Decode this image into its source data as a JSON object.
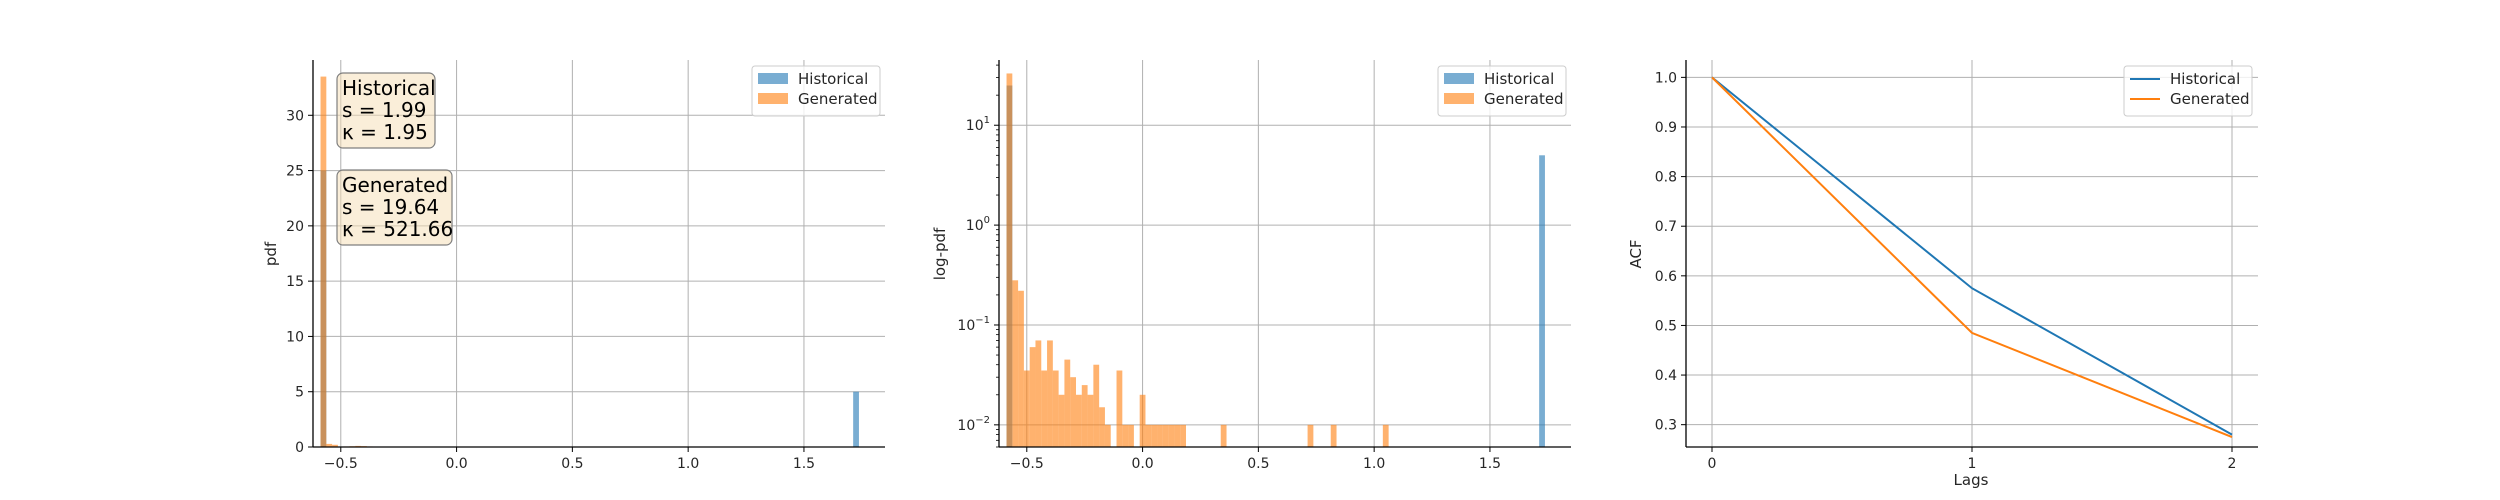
{
  "colors": {
    "historical": "#1f77b4",
    "generated": "#ff7f0e",
    "grid": "#b0b0b0",
    "axis": "#000000",
    "stats_box_fill": "#f5deb3",
    "stats_box_edge": "#7f7f7f"
  },
  "chart_data": [
    {
      "type": "histogram",
      "xlim": [
        -0.62,
        1.85
      ],
      "ylim": [
        0,
        35
      ],
      "xticks": [
        -0.5,
        0.0,
        0.5,
        1.0,
        1.5
      ],
      "xtick_labels": [
        "−0.5",
        "0.0",
        "0.5",
        "1.0",
        "1.5"
      ],
      "yticks": [
        0,
        5,
        10,
        15,
        20,
        25,
        30
      ],
      "ytick_labels": [
        "0",
        "5",
        "10",
        "15",
        "20",
        "25",
        "30"
      ],
      "xlabel": "",
      "ylabel": "pdf",
      "grid": true,
      "legend": {
        "position": "upper right",
        "entries": [
          "Historical",
          "Generated"
        ]
      },
      "series": [
        {
          "name": "Historical",
          "color_key": "historical",
          "bar_width": 0.025,
          "bars": [
            {
              "x": -0.575,
              "y": 25.0
            },
            {
              "x": 1.725,
              "y": 5.0
            }
          ]
        },
        {
          "name": "Generated",
          "color_key": "generated",
          "bar_width": 0.025,
          "bars": [
            {
              "x": -0.575,
              "y": 33.5
            },
            {
              "x": -0.55,
              "y": 0.28
            },
            {
              "x": -0.525,
              "y": 0.2
            },
            {
              "x": -0.475,
              "y": 0.05
            },
            {
              "x": -0.45,
              "y": 0.07
            },
            {
              "x": -0.425,
              "y": 0.1
            },
            {
              "x": -0.4,
              "y": 0.08
            },
            {
              "x": -0.375,
              "y": 0.05
            }
          ]
        }
      ],
      "annotations": [
        {
          "title": "Historical",
          "lines": [
            "s = 1.99",
            "κ = 1.95"
          ]
        },
        {
          "title": "Generated",
          "lines": [
            "s = 19.64",
            "κ = 521.66"
          ]
        }
      ]
    },
    {
      "type": "histogram",
      "log_y": true,
      "xlim": [
        -0.62,
        1.85
      ],
      "ylim": [
        0.006,
        45
      ],
      "xticks": [
        -0.5,
        0.0,
        0.5,
        1.0,
        1.5
      ],
      "xtick_labels": [
        "−0.5",
        "0.0",
        "0.5",
        "1.0",
        "1.5"
      ],
      "yticks": [
        0.01,
        0.1,
        1,
        10
      ],
      "ytick_labels": [
        {
          "base": "10",
          "exp": "−2"
        },
        {
          "base": "10",
          "exp": "−1"
        },
        {
          "base": "10",
          "exp": "0"
        },
        {
          "base": "10",
          "exp": "1"
        }
      ],
      "xlabel": "",
      "ylabel": "log-pdf",
      "grid": true,
      "legend": {
        "position": "upper right",
        "entries": [
          "Historical",
          "Generated"
        ]
      },
      "series": [
        {
          "name": "Historical",
          "color_key": "historical",
          "bar_width": 0.025,
          "bars": [
            {
              "x": -0.575,
              "y": 25.0
            },
            {
              "x": 1.725,
              "y": 5.0
            }
          ]
        },
        {
          "name": "Generated",
          "color_key": "generated",
          "bar_width": 0.025,
          "bars": [
            {
              "x": -0.575,
              "y": 33.0
            },
            {
              "x": -0.55,
              "y": 0.28
            },
            {
              "x": -0.525,
              "y": 0.22
            },
            {
              "x": -0.5,
              "y": 0.035
            },
            {
              "x": -0.475,
              "y": 0.06
            },
            {
              "x": -0.45,
              "y": 0.07
            },
            {
              "x": -0.425,
              "y": 0.035
            },
            {
              "x": -0.4,
              "y": 0.07
            },
            {
              "x": -0.375,
              "y": 0.035
            },
            {
              "x": -0.35,
              "y": 0.02
            },
            {
              "x": -0.325,
              "y": 0.045
            },
            {
              "x": -0.3,
              "y": 0.03
            },
            {
              "x": -0.275,
              "y": 0.02
            },
            {
              "x": -0.25,
              "y": 0.025
            },
            {
              "x": -0.225,
              "y": 0.02
            },
            {
              "x": -0.2,
              "y": 0.04
            },
            {
              "x": -0.175,
              "y": 0.015
            },
            {
              "x": -0.15,
              "y": 0.01
            },
            {
              "x": -0.1,
              "y": 0.035
            },
            {
              "x": -0.075,
              "y": 0.01
            },
            {
              "x": -0.05,
              "y": 0.01
            },
            {
              "x": 0.0,
              "y": 0.02
            },
            {
              "x": 0.025,
              "y": 0.01
            },
            {
              "x": 0.05,
              "y": 0.01
            },
            {
              "x": 0.075,
              "y": 0.01
            },
            {
              "x": 0.1,
              "y": 0.01
            },
            {
              "x": 0.125,
              "y": 0.01
            },
            {
              "x": 0.15,
              "y": 0.01
            },
            {
              "x": 0.175,
              "y": 0.01
            },
            {
              "x": 0.35,
              "y": 0.01
            },
            {
              "x": 0.725,
              "y": 0.01
            },
            {
              "x": 0.825,
              "y": 0.01
            },
            {
              "x": 1.05,
              "y": 0.01
            }
          ]
        }
      ]
    },
    {
      "type": "line",
      "xlim": [
        -0.1,
        2.1
      ],
      "ylim": [
        0.255,
        1.035
      ],
      "xticks": [
        0,
        1,
        2
      ],
      "xtick_labels": [
        "0",
        "1",
        "2"
      ],
      "yticks": [
        0.3,
        0.4,
        0.5,
        0.6,
        0.7,
        0.8,
        0.9,
        1.0
      ],
      "ytick_labels": [
        "0.3",
        "0.4",
        "0.5",
        "0.6",
        "0.7",
        "0.8",
        "0.9",
        "1.0"
      ],
      "xlabel": "Lags",
      "ylabel": "ACF",
      "grid": true,
      "legend": {
        "position": "upper right",
        "entries": [
          "Historical",
          "Generated"
        ]
      },
      "x": [
        0,
        1,
        2
      ],
      "series": [
        {
          "name": "Historical",
          "color_key": "historical",
          "values": [
            1.0,
            0.575,
            0.28
          ]
        },
        {
          "name": "Generated",
          "color_key": "generated",
          "values": [
            1.0,
            0.485,
            0.275
          ]
        }
      ]
    }
  ]
}
